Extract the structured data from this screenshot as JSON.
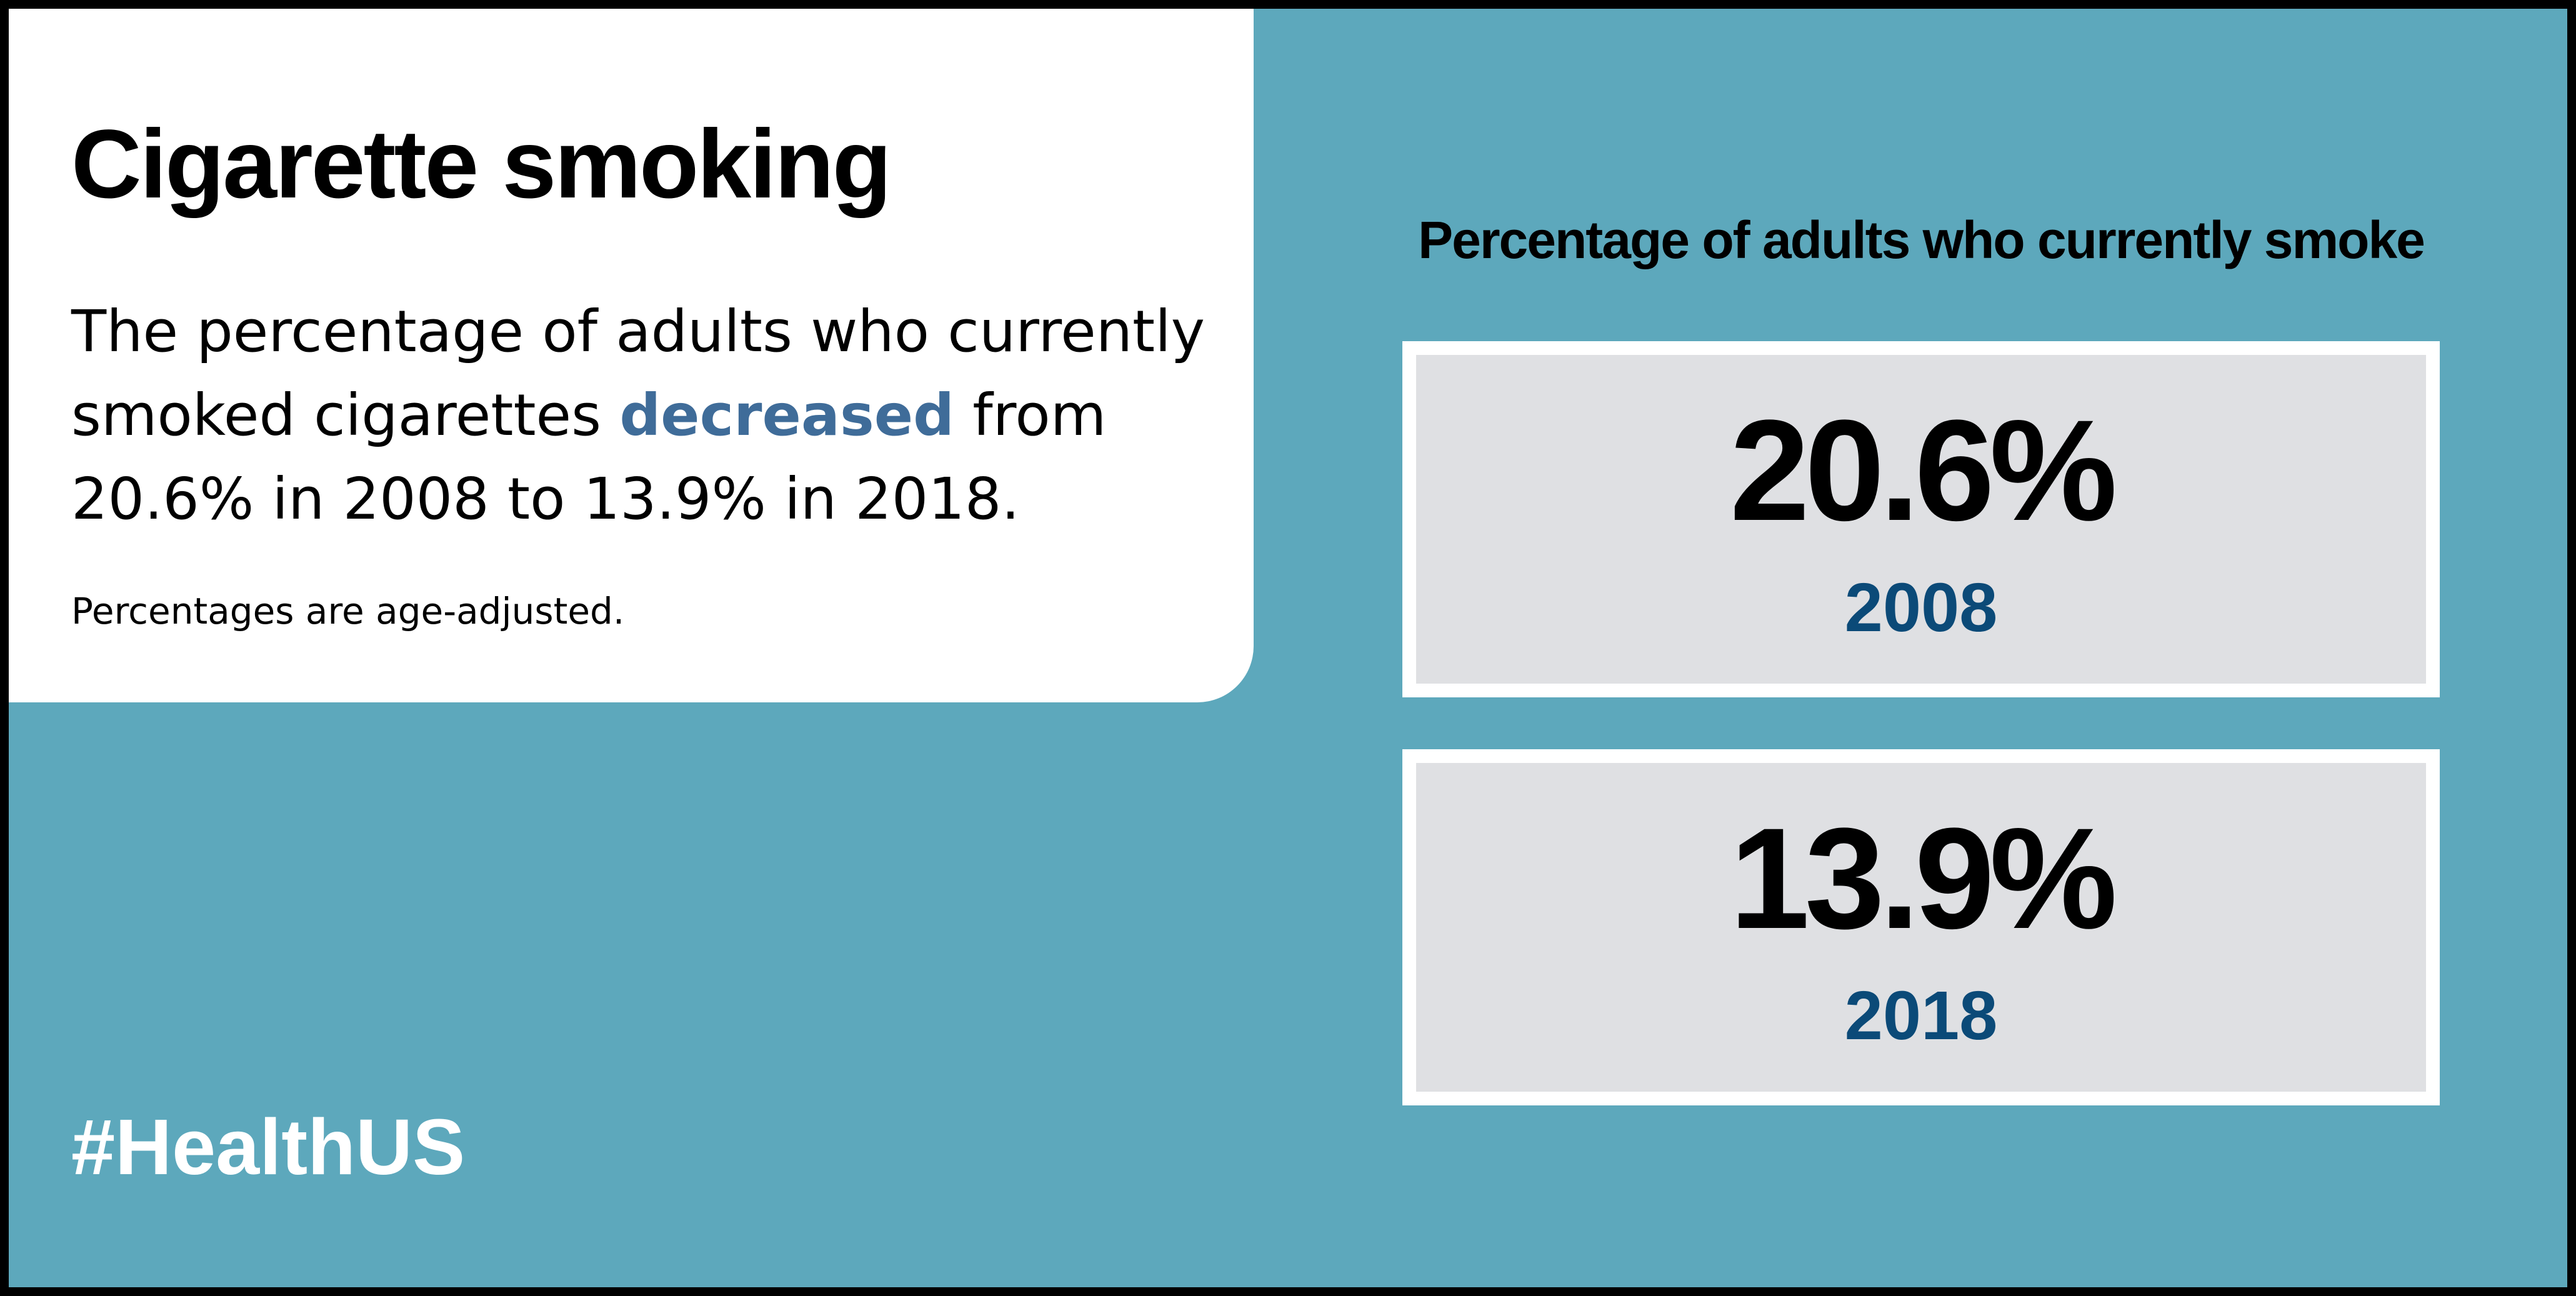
{
  "left_panel": {
    "title": "Cigarette smoking",
    "summary_before": "The percentage of adults who currently smoked cigarettes ",
    "summary_highlight": "decreased",
    "summary_after": " from 20.6% in 2008 to 13.9% in 2018.",
    "note": "Percentages are age-adjusted."
  },
  "hashtag": "#HealthUS",
  "stats": {
    "heading": "Percentage of adults who currently smoke",
    "items": [
      {
        "value": "20.6%",
        "year": "2008"
      },
      {
        "value": "13.9%",
        "year": "2018"
      }
    ]
  },
  "colors": {
    "background": "#5da8bc",
    "panel": "#ffffff",
    "highlight_text": "#3f6c99",
    "year_text": "#0b4a78",
    "stat_box": "#dfe0e3"
  }
}
